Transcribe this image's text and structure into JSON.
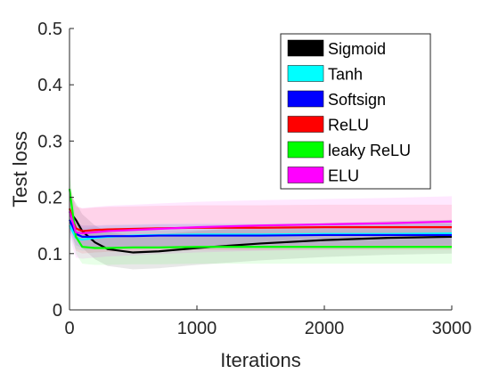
{
  "chart_data": {
    "type": "line",
    "xlabel": "Iterations",
    "ylabel": "Test loss",
    "xlim": [
      0,
      3000
    ],
    "ylim": [
      0,
      0.5
    ],
    "xticks": [
      0,
      1000,
      2000,
      3000
    ],
    "yticks": [
      0,
      0.1,
      0.2,
      0.3,
      0.4,
      0.5
    ],
    "xtick_labels": [
      "0",
      "1000",
      "2000",
      "3000"
    ],
    "ytick_labels": [
      "0",
      "0.1",
      "0.2",
      "0.3",
      "0.4",
      "0.5"
    ],
    "grid": false,
    "legend_position": "top-right",
    "x": [
      0,
      50,
      100,
      200,
      300,
      500,
      700,
      1000,
      1500,
      2000,
      2500,
      3000
    ],
    "series": [
      {
        "name": "Sigmoid",
        "color": "#000000",
        "values": [
          0.175,
          0.16,
          0.14,
          0.12,
          0.108,
          0.102,
          0.104,
          0.11,
          0.118,
          0.124,
          0.128,
          0.13
        ],
        "band": [
          0.03,
          0.03,
          0.03,
          0.03,
          0.03,
          0.03,
          0.03,
          0.03,
          0.03,
          0.03,
          0.03,
          0.03
        ]
      },
      {
        "name": "Tanh",
        "color": "#00ffff",
        "values": [
          0.15,
          0.128,
          0.125,
          0.128,
          0.13,
          0.132,
          0.133,
          0.134,
          0.134,
          0.135,
          0.135,
          0.136
        ],
        "band": [
          0.02,
          0.02,
          0.02,
          0.02,
          0.02,
          0.02,
          0.02,
          0.02,
          0.02,
          0.02,
          0.02,
          0.02
        ]
      },
      {
        "name": "Softsign",
        "color": "#0000ff",
        "values": [
          0.16,
          0.135,
          0.13,
          0.13,
          0.131,
          0.131,
          0.132,
          0.132,
          0.132,
          0.133,
          0.133,
          0.133
        ],
        "band": [
          0.02,
          0.02,
          0.02,
          0.02,
          0.02,
          0.02,
          0.02,
          0.02,
          0.02,
          0.02,
          0.02,
          0.02
        ]
      },
      {
        "name": "ReLU",
        "color": "#ff0000",
        "values": [
          0.18,
          0.145,
          0.14,
          0.142,
          0.143,
          0.144,
          0.145,
          0.146,
          0.146,
          0.147,
          0.147,
          0.147
        ],
        "band": [
          0.04,
          0.04,
          0.04,
          0.04,
          0.04,
          0.04,
          0.04,
          0.04,
          0.04,
          0.04,
          0.04,
          0.04
        ]
      },
      {
        "name": "leaky ReLU",
        "color": "#00ff00",
        "values": [
          0.215,
          0.13,
          0.112,
          0.11,
          0.11,
          0.111,
          0.111,
          0.112,
          0.112,
          0.112,
          0.112,
          0.112
        ],
        "band": [
          0.03,
          0.03,
          0.03,
          0.03,
          0.03,
          0.03,
          0.03,
          0.03,
          0.03,
          0.03,
          0.03,
          0.03
        ]
      },
      {
        "name": "ELU",
        "color": "#ff00ff",
        "values": [
          0.175,
          0.138,
          0.136,
          0.138,
          0.14,
          0.142,
          0.144,
          0.147,
          0.15,
          0.152,
          0.154,
          0.157
        ],
        "band": [
          0.045,
          0.045,
          0.045,
          0.045,
          0.045,
          0.045,
          0.045,
          0.045,
          0.045,
          0.045,
          0.045,
          0.045
        ]
      }
    ]
  }
}
